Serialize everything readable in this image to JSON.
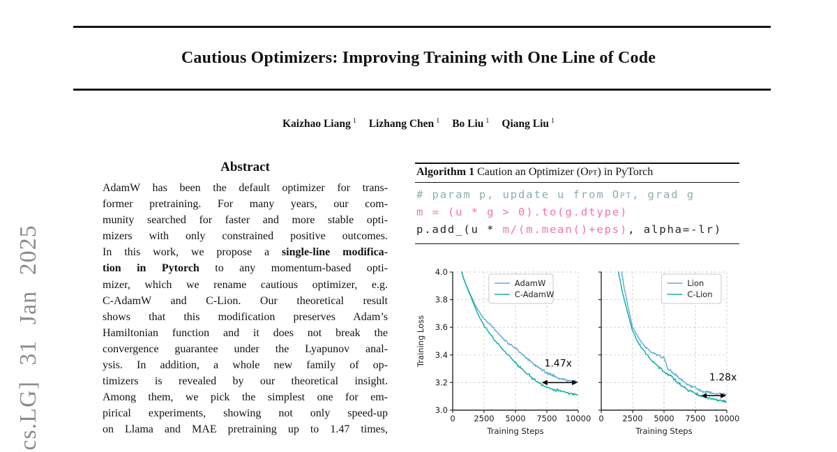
{
  "sidebar": {
    "arxiv_label": "[cs.LG] 31 Jan 2025"
  },
  "paper": {
    "title": "Cautious Optimizers: Improving Training with One Line of Code",
    "authors": [
      {
        "name": "Kaizhao Liang",
        "sup": "1"
      },
      {
        "name": "Lizhang Chen",
        "sup": "1"
      },
      {
        "name": "Bo Liu",
        "sup": "1"
      },
      {
        "name": "Qiang Liu",
        "sup": "1"
      }
    ]
  },
  "abstract": {
    "heading": "Abstract",
    "lines": [
      [
        {
          "t": "AdamW has been the default optimizer for trans-"
        }
      ],
      [
        {
          "t": "former pretraining. For many years, our com-"
        }
      ],
      [
        {
          "t": "munity searched for faster and more stable opti-"
        }
      ],
      [
        {
          "t": "mizers with only constrained positive outcomes."
        }
      ],
      [
        {
          "t": "In this work, we propose a "
        },
        {
          "t": "single-line modifica-",
          "b": true
        }
      ],
      [
        {
          "t": "tion in Pytorch",
          "b": true
        },
        {
          "t": " to any momentum-based opti-"
        }
      ],
      [
        {
          "t": "mizer, which we rename cautious optimizer, e.g."
        }
      ],
      [
        {
          "t": "C-AdamW and C-Lion. Our theoretical result"
        }
      ],
      [
        {
          "t": "shows that this modification preserves Adam’s"
        }
      ],
      [
        {
          "t": "Hamiltonian function and it does not break the"
        }
      ],
      [
        {
          "t": "convergence guarantee under the Lyapunov anal-"
        }
      ],
      [
        {
          "t": "ysis. In addition, a whole new family of op-"
        }
      ],
      [
        {
          "t": "timizers is revealed by our theoretical insight."
        }
      ],
      [
        {
          "t": "Among them, we pick the simplest one for em-"
        }
      ],
      [
        {
          "t": "pirical experiments, showing not only speed-up"
        }
      ],
      [
        {
          "t": "on Llama and MAE pretraining up to 1.47 times,"
        }
      ]
    ]
  },
  "algorithm": {
    "label": "Algorithm 1",
    "title_pre": " Caution an Optimizer (",
    "title_sc": "Opt",
    "title_post": ") in PyTorch",
    "code_colors": {
      "comment": "#87aeae",
      "pink": "#f173b3",
      "plain": "#222222"
    },
    "code_lines": [
      [
        {
          "t": "# param p, update u from ",
          "c": "comment"
        },
        {
          "t": "Opt",
          "c": "comment",
          "sc": true
        },
        {
          "t": ", grad g",
          "c": "comment"
        }
      ],
      [
        {
          "t": "m = (u * g > 0).to(g.dtype)",
          "c": "pink"
        }
      ],
      [
        {
          "t": "p.add_(u * ",
          "c": "plain"
        },
        {
          "t": "m/(m.mean()+eps)",
          "c": "pink"
        },
        {
          "t": ", alpha=-lr)",
          "c": "plain"
        }
      ]
    ]
  },
  "chart_data": [
    {
      "type": "line",
      "title": "",
      "xlabel": "Training Steps",
      "ylabel": "Training Loss",
      "xlim": [
        0,
        10000
      ],
      "ylim": [
        3.0,
        4.0
      ],
      "xticks": [
        0,
        2500,
        5000,
        7500,
        10000
      ],
      "yticks": [
        3.0,
        3.2,
        3.4,
        3.6,
        3.8,
        4.0
      ],
      "show_ytick_labels": true,
      "grid": true,
      "legend_position": "upper right",
      "legend_offset_right": 36,
      "annotation": {
        "text": "1.47x",
        "text_x": 8400,
        "text_y": 3.315,
        "arrow_y": 3.2,
        "arrow_x1": 7100,
        "arrow_x2": 9950
      },
      "series": [
        {
          "name": "AdamW",
          "color": "#64acd8",
          "x": [
            500,
            1000,
            1500,
            1800,
            2200,
            2500,
            3000,
            3500,
            4000,
            4500,
            5000,
            5500,
            6000,
            6500,
            7000,
            7500,
            8000,
            8500,
            9000,
            9500,
            10000
          ],
          "y": [
            4.06,
            3.92,
            3.82,
            3.76,
            3.7,
            3.66,
            3.62,
            3.57,
            3.52,
            3.48,
            3.45,
            3.41,
            3.37,
            3.33,
            3.3,
            3.27,
            3.25,
            3.23,
            3.22,
            3.21,
            3.21
          ]
        },
        {
          "name": "C-AdamW",
          "color": "#14b0a5",
          "x": [
            500,
            1000,
            1500,
            1800,
            2200,
            2500,
            3000,
            3500,
            4000,
            4500,
            5000,
            5500,
            6000,
            6500,
            7000,
            7500,
            8000,
            8500,
            9000,
            9500,
            10000
          ],
          "y": [
            4.06,
            3.92,
            3.81,
            3.74,
            3.66,
            3.61,
            3.55,
            3.49,
            3.44,
            3.39,
            3.34,
            3.3,
            3.26,
            3.22,
            3.19,
            3.17,
            3.15,
            3.14,
            3.13,
            3.12,
            3.11
          ]
        }
      ]
    },
    {
      "type": "line",
      "title": "",
      "xlabel": "Training Steps",
      "ylabel": "",
      "xlim": [
        0,
        10000
      ],
      "ylim": [
        3.0,
        4.0
      ],
      "xticks": [
        0,
        2500,
        5000,
        7500,
        10000
      ],
      "yticks": [
        3.0,
        3.2,
        3.4,
        3.6,
        3.8,
        4.0
      ],
      "show_ytick_labels": false,
      "grid": true,
      "legend_position": "upper right",
      "legend_offset_right": 8,
      "annotation": {
        "text": "1.28x",
        "text_x": 9700,
        "text_y": 3.215,
        "arrow_y": 3.105,
        "arrow_x1": 7950,
        "arrow_x2": 9950
      },
      "series": [
        {
          "name": "Lion",
          "color": "#64acd8",
          "x": [
            1450,
            1800,
            2200,
            2500,
            3000,
            3500,
            4000,
            4600,
            5000,
            5300,
            5600,
            6000,
            6500,
            7000,
            7500,
            8000,
            8500,
            9000,
            9500,
            10000
          ],
          "y": [
            4.1,
            3.9,
            3.72,
            3.6,
            3.52,
            3.46,
            3.42,
            3.39,
            3.38,
            3.3,
            3.28,
            3.25,
            3.21,
            3.18,
            3.16,
            3.14,
            3.13,
            3.12,
            3.12,
            3.11
          ]
        },
        {
          "name": "C-Lion",
          "color": "#14b0a5",
          "x": [
            1150,
            1700,
            2000,
            2500,
            3000,
            3500,
            4000,
            4500,
            5000,
            5500,
            6000,
            6500,
            7000,
            7500,
            8000,
            8500,
            9000,
            9500,
            10000
          ],
          "y": [
            4.1,
            3.85,
            3.74,
            3.57,
            3.48,
            3.42,
            3.36,
            3.32,
            3.28,
            3.25,
            3.21,
            3.17,
            3.14,
            3.12,
            3.1,
            3.09,
            3.08,
            3.07,
            3.06
          ]
        }
      ]
    }
  ]
}
